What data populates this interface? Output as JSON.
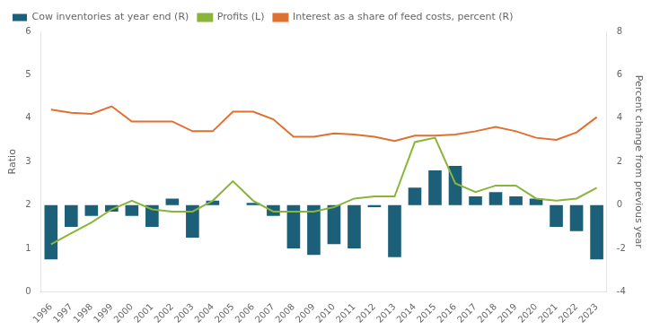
{
  "chart_data": {
    "type": "bar",
    "categories": [
      1996,
      1997,
      1998,
      1999,
      2000,
      2001,
      2002,
      2003,
      2004,
      2005,
      2006,
      2007,
      2008,
      2009,
      2010,
      2011,
      2012,
      2013,
      2014,
      2015,
      2016,
      2017,
      2018,
      2019,
      2020,
      2021,
      2022,
      2023
    ],
    "series": [
      {
        "name": "Cow inventories at year end (R)",
        "type": "bar",
        "axis": "y2",
        "color": "#1b6078",
        "values": [
          -2.5,
          -1.0,
          -0.5,
          -0.3,
          -0.5,
          -1.0,
          0.3,
          -1.5,
          0.2,
          0.0,
          0.1,
          -0.5,
          -2.0,
          -2.3,
          -1.8,
          -2.0,
          -0.1,
          -2.4,
          0.8,
          1.6,
          1.8,
          0.4,
          0.6,
          0.4,
          0.3,
          -1.0,
          -1.2,
          -2.5
        ]
      },
      {
        "name": "Profits (L)",
        "type": "line",
        "color": "#8ab53a",
        "values": [
          1.1,
          1.35,
          1.6,
          1.9,
          2.1,
          1.9,
          1.85,
          1.85,
          2.1,
          2.55,
          2.1,
          1.85,
          1.85,
          1.85,
          1.95,
          2.15,
          2.2,
          2.2,
          3.45,
          3.55,
          2.5,
          2.3,
          2.45,
          2.45,
          2.15,
          2.1,
          2.15,
          2.4
        ]
      },
      {
        "name": "Interest as a share of feed costs, percent (R)",
        "type": "line",
        "axis": "y2",
        "color": "#e07030",
        "values": [
          4.4,
          4.25,
          4.2,
          4.55,
          3.85,
          3.85,
          3.85,
          3.4,
          3.4,
          4.3,
          4.3,
          3.95,
          3.15,
          3.15,
          3.3,
          3.25,
          3.15,
          2.95,
          3.2,
          3.2,
          3.25,
          3.4,
          3.6,
          3.4,
          3.1,
          3.0,
          3.35,
          4.05
        ]
      }
    ],
    "ylabel": "Ratio",
    "y2label": "Percent change from previous year",
    "ylim": [
      0,
      6
    ],
    "yticks": [
      0,
      1,
      2,
      3,
      4,
      5,
      6
    ],
    "y2lim": [
      -4,
      8
    ],
    "y2ticks": [
      -4,
      -2,
      0,
      2,
      4,
      6,
      8
    ],
    "grid": false,
    "legend": "upper left"
  }
}
